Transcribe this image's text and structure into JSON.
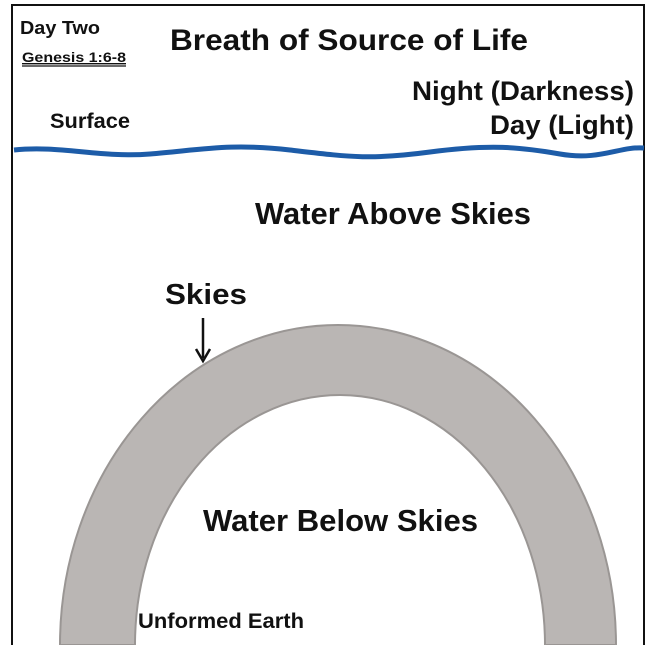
{
  "header": {
    "day": "Day Two",
    "reference": "Genesis 1:6-8",
    "title": "Breath of Source of Life"
  },
  "labels": {
    "night": "Night (Darkness)",
    "day": "Day (Light)",
    "surface": "Surface",
    "water_above": "Water Above Skies",
    "skies": "Skies",
    "water_below": "Water Below Skies",
    "earth": "Unformed Earth"
  }
}
